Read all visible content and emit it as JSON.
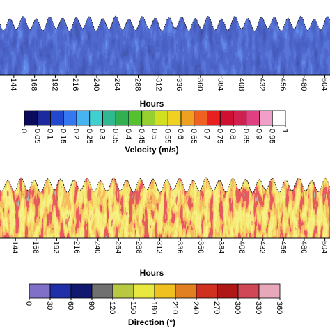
{
  "chart_data": [
    {
      "type": "heatmap",
      "xlabel": "Hours",
      "xlim": [
        128,
        510
      ],
      "xticks": [
        144,
        168,
        192,
        216,
        240,
        264,
        288,
        312,
        336,
        360,
        384,
        408,
        432,
        456,
        480,
        504
      ],
      "colorbar": {
        "label": "Velocity (m/s)",
        "lim": [
          0,
          1
        ],
        "ticks": [
          0,
          0.05,
          0.1,
          0.15,
          0.2,
          0.25,
          0.3,
          0.35,
          0.4,
          0.45,
          0.5,
          0.55,
          0.6,
          0.65,
          0.7,
          0.75,
          0.8,
          0.85,
          0.9,
          0.95,
          1
        ],
        "colors": [
          "#0b0b5e",
          "#1c2a9e",
          "#2248d0",
          "#3378f0",
          "#45b4f0",
          "#40d0d0",
          "#30b890",
          "#30b050",
          "#55c030",
          "#95d030",
          "#d0e020",
          "#f0d020",
          "#f0a020",
          "#f06020",
          "#e82020",
          "#d01030",
          "#d02050",
          "#e04080",
          "#f0a0c8",
          "#ffffff"
        ]
      }
    },
    {
      "type": "heatmap",
      "xlabel": "Hours",
      "xlim": [
        126,
        510
      ],
      "xticks": [
        144,
        168,
        192,
        216,
        240,
        264,
        288,
        312,
        336,
        360,
        384,
        408,
        432,
        456,
        480,
        504
      ],
      "colorbar": {
        "label": "Direction (°)",
        "lim": [
          0,
          360
        ],
        "ticks": [
          0,
          30,
          60,
          90,
          120,
          150,
          180,
          210,
          240,
          270,
          300,
          330,
          360
        ],
        "colors": [
          "#8070c8",
          "#2030a8",
          "#101870",
          "#707070",
          "#b8c840",
          "#e8e840",
          "#f0c020",
          "#e08020",
          "#d03020",
          "#b01818",
          "#d04858",
          "#e8a8bc"
        ]
      }
    }
  ]
}
